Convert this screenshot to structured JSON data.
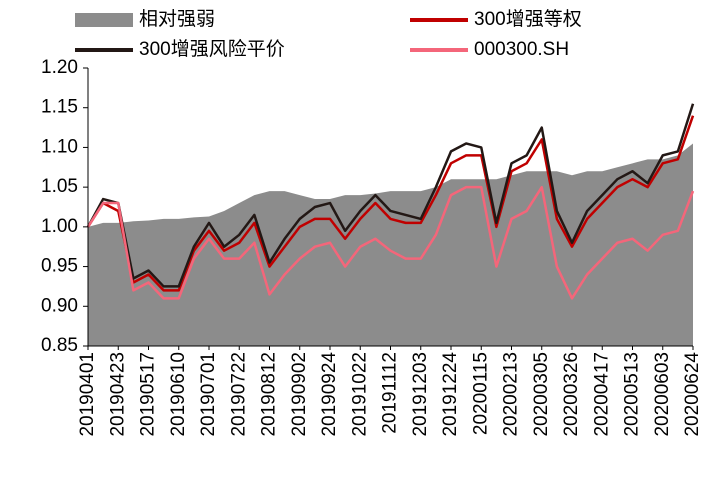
{
  "chart_data": {
    "type": "line",
    "categories": [
      "20190401",
      null,
      "20190423",
      null,
      "20190517",
      null,
      "20190610",
      null,
      "20190701",
      null,
      "20190722",
      null,
      "20190812",
      null,
      "20190902",
      null,
      "20190924",
      null,
      "20191022",
      null,
      "20191112",
      null,
      "20191203",
      null,
      "20191224",
      null,
      "20200115",
      null,
      "20200213",
      null,
      "20200305",
      null,
      "20200326",
      null,
      "20200417",
      null,
      "20200513",
      null,
      "20200603",
      null,
      "20200624"
    ],
    "series": [
      {
        "name": "相对强弱",
        "type": "area",
        "color": "#8c8c8c",
        "values": [
          1.0,
          1.005,
          1.005,
          1.007,
          1.008,
          1.01,
          1.01,
          1.012,
          1.013,
          1.02,
          1.03,
          1.04,
          1.045,
          1.045,
          1.04,
          1.035,
          1.035,
          1.04,
          1.04,
          1.042,
          1.045,
          1.045,
          1.045,
          1.05,
          1.06,
          1.06,
          1.06,
          1.06,
          1.065,
          1.07,
          1.07,
          1.07,
          1.065,
          1.07,
          1.07,
          1.075,
          1.08,
          1.085,
          1.085,
          1.09,
          1.105
        ]
      },
      {
        "name": "300增强等权",
        "color": "#c00000",
        "values": [
          1.0,
          1.03,
          1.02,
          0.93,
          0.94,
          0.92,
          0.92,
          0.97,
          0.995,
          0.97,
          0.98,
          1.005,
          0.95,
          0.975,
          1.0,
          1.01,
          1.01,
          0.985,
          1.01,
          1.03,
          1.01,
          1.005,
          1.005,
          1.04,
          1.08,
          1.09,
          1.09,
          1.0,
          1.07,
          1.08,
          1.11,
          1.01,
          0.975,
          1.01,
          1.03,
          1.05,
          1.06,
          1.05,
          1.08,
          1.085,
          1.14
        ]
      },
      {
        "name": "300增强风险平价",
        "color": "#231815",
        "values": [
          1.0,
          1.035,
          1.03,
          0.935,
          0.945,
          0.925,
          0.925,
          0.975,
          1.005,
          0.975,
          0.99,
          1.015,
          0.955,
          0.985,
          1.01,
          1.025,
          1.03,
          0.995,
          1.02,
          1.04,
          1.02,
          1.015,
          1.01,
          1.05,
          1.095,
          1.105,
          1.1,
          1.005,
          1.08,
          1.09,
          1.125,
          1.02,
          0.98,
          1.02,
          1.04,
          1.06,
          1.07,
          1.055,
          1.09,
          1.095,
          1.155
        ]
      },
      {
        "name": "000300.SH",
        "color": "#f4667a",
        "values": [
          1.0,
          1.03,
          1.03,
          0.92,
          0.93,
          0.91,
          0.91,
          0.96,
          0.985,
          0.96,
          0.96,
          0.98,
          0.915,
          0.94,
          0.96,
          0.975,
          0.98,
          0.95,
          0.975,
          0.985,
          0.97,
          0.96,
          0.96,
          0.99,
          1.04,
          1.05,
          1.05,
          0.95,
          1.01,
          1.02,
          1.05,
          0.95,
          0.91,
          0.94,
          0.96,
          0.98,
          0.985,
          0.97,
          0.99,
          0.995,
          1.045
        ]
      }
    ],
    "ylim": [
      0.85,
      1.2
    ],
    "yticks": [
      {
        "value": 0.85,
        "label": "0.85"
      },
      {
        "value": 0.9,
        "label": "0.90"
      },
      {
        "value": 0.95,
        "label": "0.95"
      },
      {
        "value": 1,
        "label": "1.00"
      },
      {
        "value": 1.05,
        "label": "1.05"
      },
      {
        "value": 1.1,
        "label": "1.10"
      },
      {
        "value": 1.15,
        "label": "1.15"
      },
      {
        "value": 1.2,
        "label": "1.20"
      }
    ],
    "grid": false
  }
}
